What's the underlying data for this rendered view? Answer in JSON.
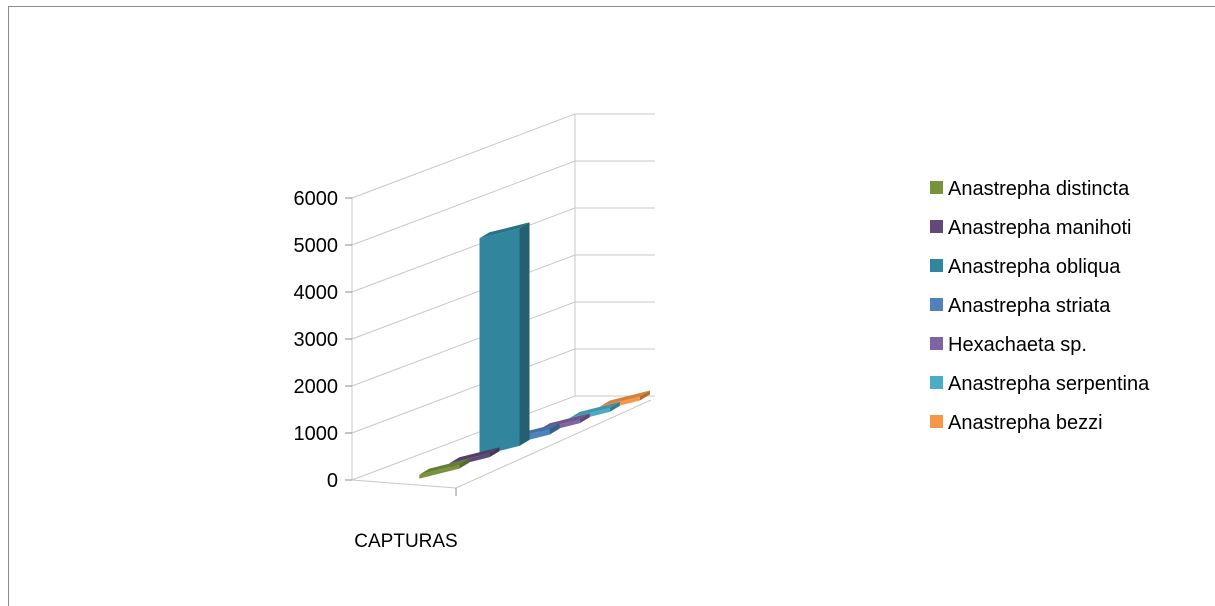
{
  "chart_data": {
    "type": "bar",
    "title": "",
    "categories": [
      "CAPTURAS"
    ],
    "xlabel": "",
    "ylabel": "",
    "ylim": [
      0,
      6000
    ],
    "yticks": [
      "0",
      "1000",
      "2000",
      "3000",
      "4000",
      "5000",
      "6000"
    ],
    "grid": true,
    "legend_position": "right",
    "series": [
      {
        "name": "Anastrepha distincta",
        "values": [
          60
        ],
        "color": "#77933c"
      },
      {
        "name": "Anastrepha manihoti",
        "values": [
          45
        ],
        "color": "#604a7b"
      },
      {
        "name": "Anastrepha obliqua",
        "values": [
          4630
        ],
        "color": "#31859c"
      },
      {
        "name": "Anastrepha striata",
        "values": [
          120
        ],
        "color": "#4f81bd"
      },
      {
        "name": "Hexachaeta sp.",
        "values": [
          40
        ],
        "color": "#8064a2"
      },
      {
        "name": "Anastrepha serpentina",
        "values": [
          30
        ],
        "color": "#4bacc6"
      },
      {
        "name": "Anastrepha bezzi",
        "values": [
          25
        ],
        "color": "#f79646"
      }
    ]
  }
}
